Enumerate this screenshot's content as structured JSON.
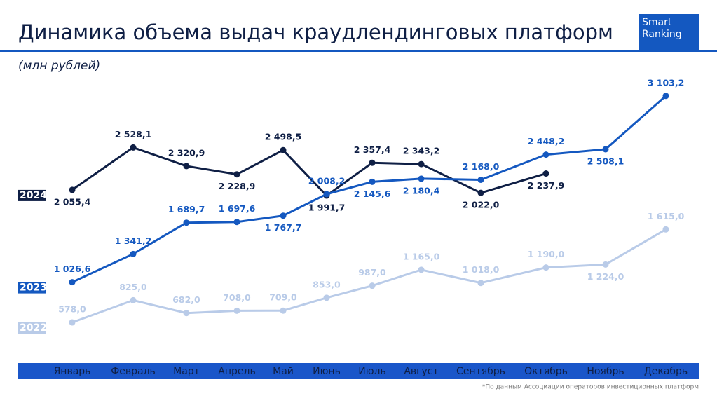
{
  "chart_data": {
    "type": "line",
    "title": "Динамика объема выдач краудлендинговых платформ",
    "subtitle": "(млн рублей)",
    "logo": [
      "Smart",
      "Ranking"
    ],
    "footnote": "*По данным Ассоциации операторов инвестиционных платформ",
    "categories": [
      "Январь",
      "Февраль",
      "Март",
      "Апрель",
      "Май",
      "Июнь",
      "Июль",
      "Август",
      "Сентябрь",
      "Октябрь",
      "Ноябрь",
      "Декабрь"
    ],
    "series": [
      {
        "name": "2024",
        "color": "#0f1f45",
        "values": [
          2055.4,
          2528.1,
          2320.9,
          2228.9,
          2498.5,
          1991.7,
          2357.4,
          2343.2,
          2022.0,
          2237.9,
          null,
          null
        ],
        "value_labels": [
          "2 055,4",
          "2 528,1",
          "2 320,9",
          "2 228,9",
          "2 498,5",
          "1 991,7",
          "2 357,4",
          "2 343,2",
          "2 022,0",
          "2 237,9",
          null,
          null
        ]
      },
      {
        "name": "2023",
        "color": "#1458c0",
        "values": [
          1026.6,
          1341.2,
          1689.7,
          1697.6,
          1767.7,
          2008.2,
          2145.6,
          2180.4,
          2168.0,
          2448.2,
          2508.1,
          3103.2
        ],
        "value_labels": [
          "1 026,6",
          "1 341,2",
          "1 689,7",
          "1 697,6",
          "1 767,7",
          "2 008,2",
          "2 145,6",
          "2 180,4",
          "2 168,0",
          "2 448,2",
          "2 508,1",
          "3 103,2"
        ]
      },
      {
        "name": "2022",
        "color": "#b9cbe8",
        "values": [
          578.0,
          825.0,
          682.0,
          708.0,
          709.0,
          853.0,
          987.0,
          1165.0,
          1018.0,
          1190.0,
          1224.0,
          1615.0
        ],
        "value_labels": [
          "578,0",
          "825,0",
          "682,0",
          "708,0",
          "709,0",
          "853,0",
          "987,0",
          "1 165,0",
          "1 018,0",
          "1 190,0",
          "1 224,0",
          "1 615,0"
        ]
      }
    ]
  }
}
